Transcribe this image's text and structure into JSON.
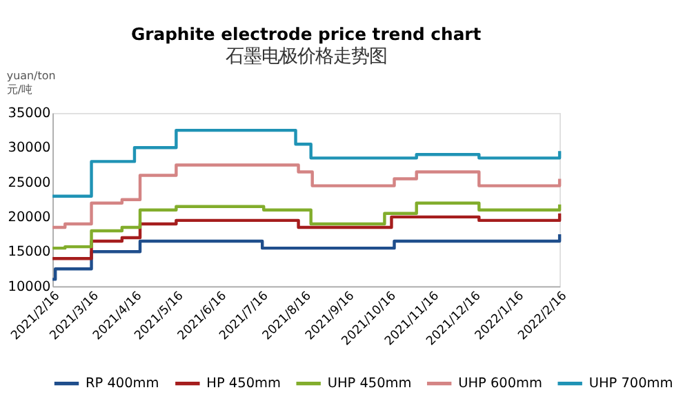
{
  "chart_data": {
    "type": "step",
    "title": "Graphite electrode price trend chart",
    "subtitle": "石墨电极价格走势图",
    "ylabel": "yuan/ton\n元/吨",
    "xlim": [
      "2021-02-16",
      "2022-02-16"
    ],
    "xticks": [
      {
        "value": "2021-02-16",
        "label": "2021/2/16"
      },
      {
        "value": "2021-03-16",
        "label": "2021/3/16"
      },
      {
        "value": "2021-04-16",
        "label": "2021/4/16"
      },
      {
        "value": "2021-05-16",
        "label": "2021/5/16"
      },
      {
        "value": "2021-06-16",
        "label": "2021/6/16"
      },
      {
        "value": "2021-07-16",
        "label": "2021/7/16"
      },
      {
        "value": "2021-08-16",
        "label": "2021/8/16"
      },
      {
        "value": "2021-09-16",
        "label": "2021/9/16"
      },
      {
        "value": "2021-10-16",
        "label": "2021/10/16"
      },
      {
        "value": "2021-11-16",
        "label": "2021/11/16"
      },
      {
        "value": "2021-12-16",
        "label": "2021/12/16"
      },
      {
        "value": "2022-01-16",
        "label": "2022/1/16"
      },
      {
        "value": "2022-02-16",
        "label": "2022/2/16"
      }
    ],
    "ylim": [
      10000,
      35000
    ],
    "yticks": [
      10000,
      15000,
      20000,
      25000,
      30000,
      35000
    ],
    "legend": "bottom",
    "series": [
      {
        "name": "RP 400mm",
        "color": "#1f4e8c",
        "x": [
          "2021-02-16",
          "2021-02-18",
          "2021-03-16",
          "2021-04-20",
          "2021-07-17",
          "2021-10-20",
          "2022-02-16"
        ],
        "values": [
          11000,
          12500,
          15000,
          16500,
          15500,
          16500,
          17500
        ]
      },
      {
        "name": "HP 450mm",
        "color": "#a51d1d",
        "x": [
          "2021-02-16",
          "2021-03-16",
          "2021-04-07",
          "2021-04-20",
          "2021-05-16",
          "2021-08-12",
          "2021-10-18",
          "2021-12-20",
          "2022-02-16"
        ],
        "values": [
          14000,
          16500,
          17000,
          19000,
          19500,
          18500,
          20000,
          19500,
          20500
        ]
      },
      {
        "name": "UHP 450mm",
        "color": "#82ad2c",
        "x": [
          "2021-02-16",
          "2021-02-25",
          "2021-03-16",
          "2021-04-07",
          "2021-04-20",
          "2021-05-16",
          "2021-07-18",
          "2021-08-21",
          "2021-10-13",
          "2021-11-05",
          "2021-12-20",
          "2022-02-16"
        ],
        "values": [
          15500,
          15700,
          18000,
          18500,
          21000,
          21500,
          21000,
          19000,
          20500,
          22000,
          21000,
          21800
        ]
      },
      {
        "name": "UHP 600mm",
        "color": "#d48484",
        "x": [
          "2021-02-16",
          "2021-02-25",
          "2021-03-16",
          "2021-04-07",
          "2021-04-20",
          "2021-05-16",
          "2021-08-12",
          "2021-08-22",
          "2021-10-20",
          "2021-11-05",
          "2021-12-20",
          "2022-02-16"
        ],
        "values": [
          18500,
          19000,
          22000,
          22500,
          26000,
          27500,
          26500,
          24500,
          25500,
          26500,
          24500,
          25500
        ]
      },
      {
        "name": "UHP 700mm",
        "color": "#1f93b5",
        "x": [
          "2021-02-16",
          "2021-03-16",
          "2021-04-16",
          "2021-05-16",
          "2021-08-10",
          "2021-08-21",
          "2021-11-05",
          "2021-12-20",
          "2022-02-16"
        ],
        "values": [
          23000,
          28000,
          30000,
          32500,
          30500,
          28500,
          29000,
          28500,
          29500
        ]
      }
    ]
  }
}
